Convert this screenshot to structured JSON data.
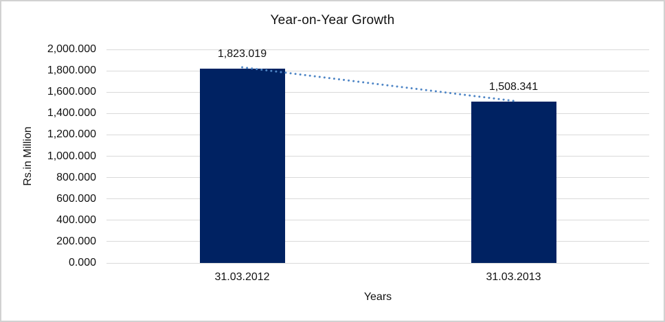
{
  "chart_data": {
    "type": "bar",
    "title": "Year-on-Year Growth",
    "xlabel": "Years",
    "ylabel": "Rs.in Million",
    "categories": [
      "31.03.2012",
      "31.03.2013"
    ],
    "values": [
      1823.019,
      1508.341
    ],
    "data_labels": [
      "1,823.019",
      "1,508.341"
    ],
    "ylim": [
      0,
      2000
    ],
    "ytick_step": 200,
    "ytick_labels": [
      "0.000",
      "200.000",
      "400.000",
      "600.000",
      "800.000",
      "1,000.000",
      "1,200.000",
      "1,400.000",
      "1,600.000",
      "1,800.000",
      "2,000.000"
    ],
    "grid": true,
    "legend": "none",
    "trendline": {
      "style": "dotted",
      "color": "#4f86c6",
      "from_value": 1823.019,
      "to_value": 1508.341
    },
    "colors": {
      "bar": "#002262",
      "gridline": "#d9d9d9",
      "text": "#111111",
      "border": "#d1d1d1",
      "background": "#ffffff"
    }
  }
}
